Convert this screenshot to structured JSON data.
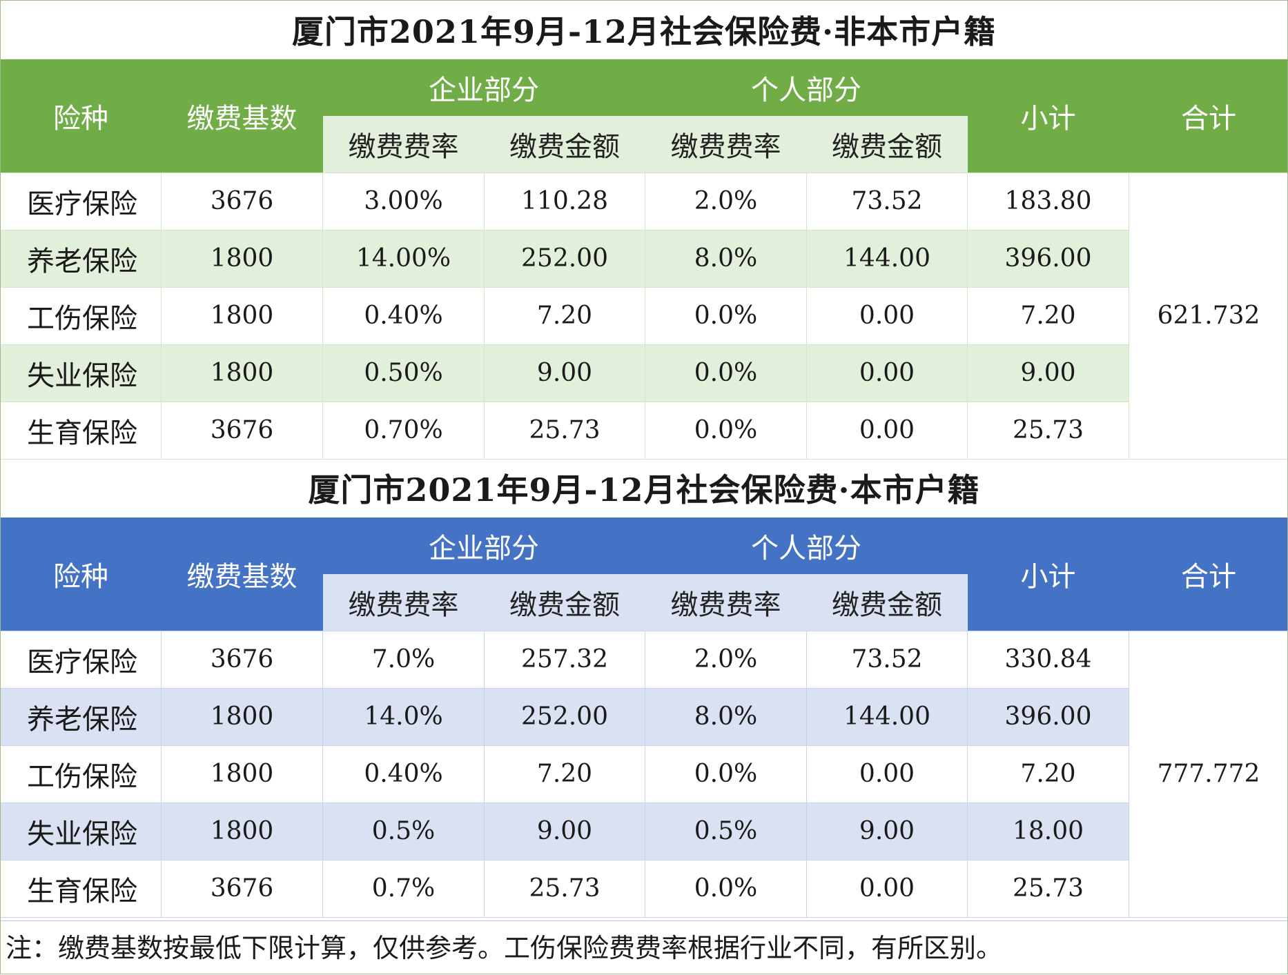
{
  "table1": {
    "title": "厦门市2021年9月-12月社会保险费·非本市户籍",
    "headers": {
      "type": "险种",
      "base": "缴费基数",
      "company": "企业部分",
      "personal": "个人部分",
      "rate": "缴费费率",
      "amount": "缴费金额",
      "subtotal": "小计",
      "total": "合计"
    },
    "rows": [
      {
        "name": "医疗保险",
        "base": "3676",
        "c_rate": "3.00%",
        "c_amt": "110.28",
        "p_rate": "2.0%",
        "p_amt": "73.52",
        "sub": "183.80"
      },
      {
        "name": "养老保险",
        "base": "1800",
        "c_rate": "14.00%",
        "c_amt": "252.00",
        "p_rate": "8.0%",
        "p_amt": "144.00",
        "sub": "396.00"
      },
      {
        "name": "工伤保险",
        "base": "1800",
        "c_rate": "0.40%",
        "c_amt": "7.20",
        "p_rate": "0.0%",
        "p_amt": "0.00",
        "sub": "7.20"
      },
      {
        "name": "失业保险",
        "base": "1800",
        "c_rate": "0.50%",
        "c_amt": "9.00",
        "p_rate": "0.0%",
        "p_amt": "0.00",
        "sub": "9.00"
      },
      {
        "name": "生育保险",
        "base": "3676",
        "c_rate": "0.70%",
        "c_amt": "25.73",
        "p_rate": "0.0%",
        "p_amt": "0.00",
        "sub": "25.73"
      }
    ],
    "total": "621.732"
  },
  "table2": {
    "title": "厦门市2021年9月-12月社会保险费·本市户籍",
    "headers": {
      "type": "险种",
      "base": "缴费基数",
      "company": "企业部分",
      "personal": "个人部分",
      "rate": "缴费费率",
      "amount": "缴费金额",
      "subtotal": "小计",
      "total": "合计"
    },
    "rows": [
      {
        "name": "医疗保险",
        "base": "3676",
        "c_rate": "7.0%",
        "c_amt": "257.32",
        "p_rate": "2.0%",
        "p_amt": "73.52",
        "sub": "330.84"
      },
      {
        "name": "养老保险",
        "base": "1800",
        "c_rate": "14.0%",
        "c_amt": "252.00",
        "p_rate": "8.0%",
        "p_amt": "144.00",
        "sub": "396.00"
      },
      {
        "name": "工伤保险",
        "base": "1800",
        "c_rate": "0.40%",
        "c_amt": "7.20",
        "p_rate": "0.0%",
        "p_amt": "0.00",
        "sub": "7.20"
      },
      {
        "name": "失业保险",
        "base": "1800",
        "c_rate": "0.5%",
        "c_amt": "9.00",
        "p_rate": "0.5%",
        "p_amt": "9.00",
        "sub": "18.00"
      },
      {
        "name": "生育保险",
        "base": "3676",
        "c_rate": "0.7%",
        "c_amt": "25.73",
        "p_rate": "0.0%",
        "p_amt": "0.00",
        "sub": "25.73"
      }
    ],
    "total": "777.772"
  },
  "note": "注：缴费基数按最低下限计算，仅供参考。工伤保险费费率根据行业不同，有所区别。",
  "colors": {
    "green_header": "#70ad47",
    "green_light": "#e2efda",
    "blue_header": "#4472c4",
    "blue_light": "#d9e1f2"
  }
}
